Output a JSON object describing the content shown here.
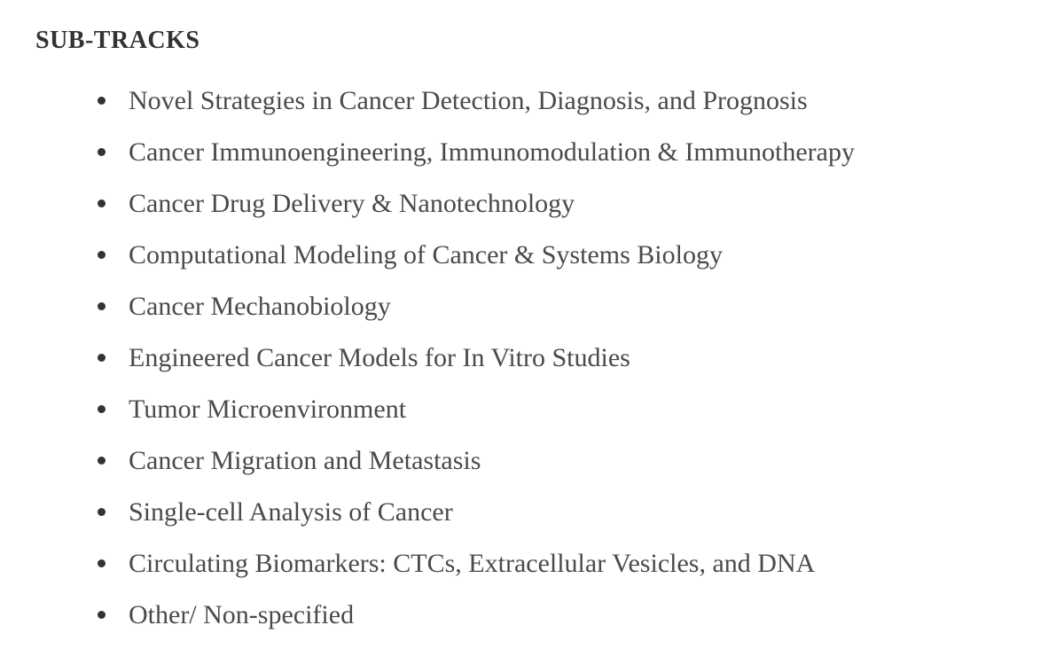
{
  "heading": "SUB-TRACKS",
  "items": [
    "Novel Strategies in Cancer Detection, Diagnosis, and Prognosis",
    "Cancer Immunoengineering, Immunomodulation & Immunotherapy",
    "Cancer Drug Delivery & Nanotechnology",
    "Computational Modeling of Cancer & Systems Biology",
    "Cancer Mechanobiology",
    "Engineered Cancer Models for In Vitro Studies",
    "Tumor Microenvironment",
    "Cancer Migration and Metastasis",
    "Single-cell Analysis of Cancer",
    "Circulating Biomarkers: CTCs, Extracellular Vesicles, and DNA",
    "Other/ Non-specified"
  ],
  "styling": {
    "background_color": "#ffffff",
    "heading_color": "#333333",
    "heading_fontsize": 28,
    "heading_fontweight": "bold",
    "item_color": "#4a4a4a",
    "item_fontsize": 30,
    "bullet_color": "#333333",
    "bullet_size": 9,
    "font_family": "Georgia, serif",
    "line_height": 1.6,
    "list_indent": 70
  }
}
